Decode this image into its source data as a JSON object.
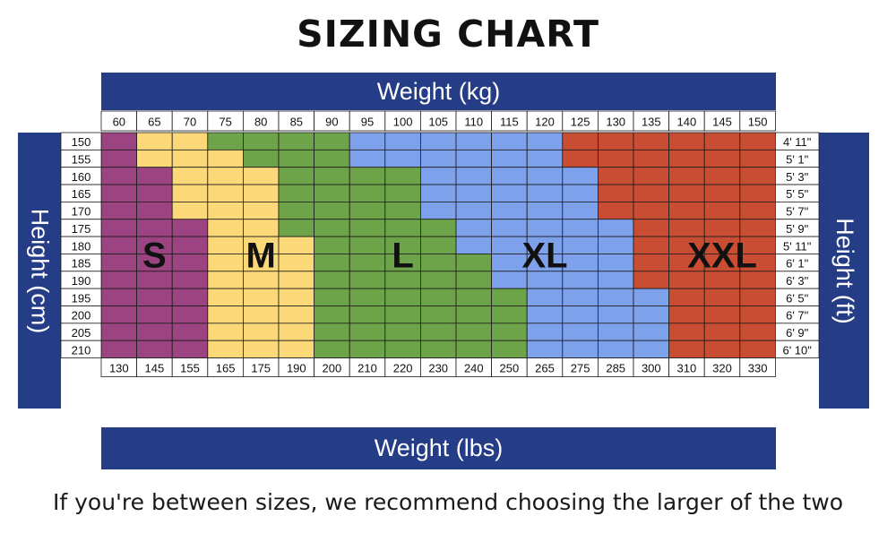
{
  "title": "SIZING CHART",
  "footnote": "If you're between sizes, we recommend choosing the larger of the two",
  "chart_data": {
    "type": "heatmap",
    "title": "SIZING CHART",
    "x_top_label": "Weight (kg)",
    "x_bottom_label": "Weight (lbs)",
    "y_left_label": "Height (cm)",
    "y_right_label": "Height (ft)",
    "weights_kg": [
      "60",
      "65",
      "70",
      "75",
      "80",
      "85",
      "90",
      "95",
      "100",
      "105",
      "110",
      "115",
      "120",
      "125",
      "130",
      "135",
      "140",
      "145",
      "150"
    ],
    "weights_lbs": [
      "130",
      "145",
      "155",
      "165",
      "175",
      "190",
      "200",
      "210",
      "220",
      "230",
      "240",
      "250",
      "265",
      "275",
      "285",
      "300",
      "310",
      "320",
      "330"
    ],
    "heights_cm": [
      "150",
      "155",
      "160",
      "165",
      "170",
      "175",
      "180",
      "185",
      "190",
      "195",
      "200",
      "205",
      "210"
    ],
    "heights_ft": [
      "4' 11\"",
      "5' 1\"",
      "5' 3\"",
      "5' 5\"",
      "5' 7\"",
      "5' 9\"",
      "5' 11\"",
      "6' 1\"",
      "6' 3\"",
      "6' 5\"",
      "6' 7\"",
      "6' 9\"",
      "6' 10\""
    ],
    "sizes": [
      {
        "name": "S",
        "color": "#9b4481"
      },
      {
        "name": "M",
        "color": "#fcd978"
      },
      {
        "name": "L",
        "color": "#6ea449"
      },
      {
        "name": "XL",
        "color": "#7ea1ec"
      },
      {
        "name": "XXL",
        "color": "#c94d33"
      }
    ],
    "grid": [
      [
        "S",
        "M",
        "M",
        "L",
        "L",
        "L",
        "L",
        "XL",
        "XL",
        "XL",
        "XL",
        "XL",
        "XL",
        "XXL",
        "XXL",
        "XXL",
        "XXL",
        "XXL",
        "XXL"
      ],
      [
        "S",
        "M",
        "M",
        "M",
        "L",
        "L",
        "L",
        "XL",
        "XL",
        "XL",
        "XL",
        "XL",
        "XL",
        "XXL",
        "XXL",
        "XXL",
        "XXL",
        "XXL",
        "XXL"
      ],
      [
        "S",
        "S",
        "M",
        "M",
        "M",
        "L",
        "L",
        "L",
        "L",
        "XL",
        "XL",
        "XL",
        "XL",
        "XL",
        "XXL",
        "XXL",
        "XXL",
        "XXL",
        "XXL"
      ],
      [
        "S",
        "S",
        "M",
        "M",
        "M",
        "L",
        "L",
        "L",
        "L",
        "XL",
        "XL",
        "XL",
        "XL",
        "XL",
        "XXL",
        "XXL",
        "XXL",
        "XXL",
        "XXL"
      ],
      [
        "S",
        "S",
        "M",
        "M",
        "M",
        "L",
        "L",
        "L",
        "L",
        "XL",
        "XL",
        "XL",
        "XL",
        "XL",
        "XXL",
        "XXL",
        "XXL",
        "XXL",
        "XXL"
      ],
      [
        "S",
        "S",
        "S",
        "M",
        "M",
        "L",
        "L",
        "L",
        "L",
        "L",
        "XL",
        "XL",
        "XL",
        "XL",
        "XL",
        "XXL",
        "XXL",
        "XXL",
        "XXL"
      ],
      [
        "S",
        "S",
        "S",
        "M",
        "M",
        "M",
        "L",
        "L",
        "L",
        "L",
        "XL",
        "XL",
        "XL",
        "XL",
        "XL",
        "XXL",
        "XXL",
        "XXL",
        "XXL"
      ],
      [
        "S",
        "S",
        "S",
        "M",
        "M",
        "M",
        "L",
        "L",
        "L",
        "L",
        "L",
        "XL",
        "XL",
        "XL",
        "XL",
        "XXL",
        "XXL",
        "XXL",
        "XXL"
      ],
      [
        "S",
        "S",
        "S",
        "M",
        "M",
        "M",
        "L",
        "L",
        "L",
        "L",
        "L",
        "XL",
        "XL",
        "XL",
        "XL",
        "XXL",
        "XXL",
        "XXL",
        "XXL"
      ],
      [
        "S",
        "S",
        "S",
        "M",
        "M",
        "M",
        "L",
        "L",
        "L",
        "L",
        "L",
        "L",
        "XL",
        "XL",
        "XL",
        "XL",
        "XXL",
        "XXL",
        "XXL"
      ],
      [
        "S",
        "S",
        "S",
        "M",
        "M",
        "M",
        "L",
        "L",
        "L",
        "L",
        "L",
        "L",
        "XL",
        "XL",
        "XL",
        "XL",
        "XXL",
        "XXL",
        "XXL"
      ],
      [
        "S",
        "S",
        "S",
        "M",
        "M",
        "M",
        "L",
        "L",
        "L",
        "L",
        "L",
        "L",
        "XL",
        "XL",
        "XL",
        "XL",
        "XXL",
        "XXL",
        "XXL"
      ],
      [
        "S",
        "S",
        "S",
        "M",
        "M",
        "M",
        "L",
        "L",
        "L",
        "L",
        "L",
        "L",
        "XL",
        "XL",
        "XL",
        "XL",
        "XXL",
        "XXL",
        "XXL"
      ]
    ],
    "size_labels": [
      {
        "name": "S",
        "row": 7,
        "col": 1
      },
      {
        "name": "M",
        "row": 7,
        "col": 4
      },
      {
        "name": "L",
        "row": 7,
        "col": 8
      },
      {
        "name": "XL",
        "row": 7,
        "col": 12
      },
      {
        "name": "XXL",
        "row": 7,
        "col": 17
      }
    ]
  }
}
